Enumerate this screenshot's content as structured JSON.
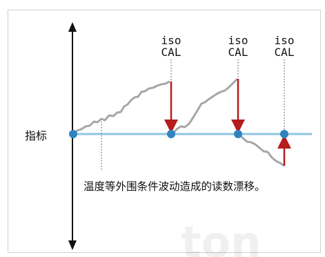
{
  "axis_label": "指标",
  "calibration_labels": [
    {
      "top": "iso",
      "bottom": "CAL"
    },
    {
      "top": "iso",
      "bottom": "CAL"
    },
    {
      "top": "iso",
      "bottom": "CAL"
    }
  ],
  "caption": "温度等外围条件波动造成的读数漂移。",
  "watermark_text": "ton",
  "colors": {
    "baseline": "#8fc5e6",
    "point": "#2f84c0",
    "drift_line": "#a6a6a6",
    "correction_arrow": "#b51c1c",
    "axis": "#111111",
    "dotted_guide": "#444444"
  }
}
